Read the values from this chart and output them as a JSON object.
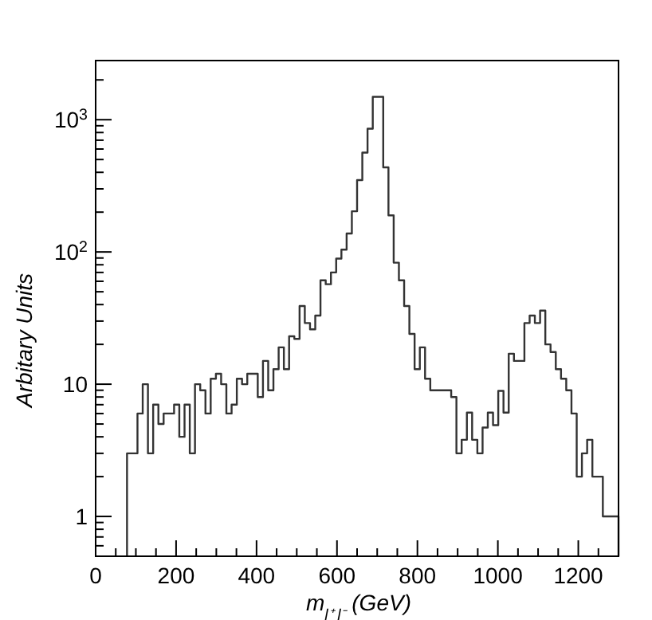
{
  "chart_data": {
    "type": "histogram",
    "xlabel": "m$_{l⁺ l⁻}$ (GeV)",
    "ylabel": "Arbitary Units",
    "log": "y",
    "grid": false,
    "color": "#333333",
    "bins": [
      78,
      91,
      104,
      117,
      130,
      143,
      156,
      169,
      182,
      195,
      208,
      221,
      234,
      247,
      260,
      273,
      286,
      299,
      312,
      325,
      338,
      351,
      364,
      377,
      390,
      403,
      416,
      429,
      442,
      455,
      468,
      481,
      494,
      507,
      520,
      533,
      546,
      559,
      572,
      585,
      598,
      611,
      624,
      637,
      650,
      663,
      676,
      689,
      702,
      715,
      728,
      741,
      754,
      767,
      780,
      793,
      806,
      819,
      832,
      845,
      858,
      871,
      884,
      897,
      910,
      923,
      936,
      949,
      962,
      975,
      988,
      1001,
      1014,
      1027,
      1040,
      1053,
      1066,
      1079,
      1092,
      1105,
      1118,
      1131,
      1144,
      1157,
      1170,
      1183,
      1196,
      1209,
      1222,
      1235,
      1248,
      1261,
      1274,
      1287,
      1300
    ],
    "values": [
      3,
      3,
      6,
      10,
      3,
      7,
      5,
      6,
      6,
      7,
      4,
      7,
      3,
      10,
      9,
      6,
      11,
      12,
      10,
      6,
      7,
      11,
      10,
      12,
      12,
      8,
      15,
      9,
      13,
      19,
      13,
      23,
      22,
      39,
      29,
      26,
      33,
      61,
      57,
      70,
      89,
      104,
      138,
      203,
      349,
      564,
      855,
      1490,
      1490,
      436,
      189,
      83,
      61,
      39,
      24,
      13,
      19,
      11,
      9,
      9,
      9,
      9,
      8,
      3,
      3.8,
      6.1,
      3.8,
      3,
      4.7,
      6.1,
      4.9,
      8.9,
      6.1,
      17,
      15,
      15,
      29,
      33,
      29,
      36,
      20,
      17.5,
      13,
      11,
      9,
      6,
      2,
      3,
      3.8,
      2,
      2,
      1,
      1,
      1
    ],
    "xlim": [
      0,
      1300
    ],
    "ylim": [
      0.5,
      2800
    ],
    "xticks": [
      0,
      {
        "value": 50,
        "label": null
      },
      {
        "value": 100,
        "label": null
      },
      {
        "value": 150,
        "label": null
      },
      200,
      {
        "value": 250,
        "label": null
      },
      {
        "value": 300,
        "label": null
      },
      {
        "value": 350,
        "label": null
      },
      400,
      {
        "value": 450,
        "label": null
      },
      {
        "value": 500,
        "label": null
      },
      {
        "value": 550,
        "label": null
      },
      600,
      {
        "value": 650,
        "label": null
      },
      {
        "value": 700,
        "label": null
      },
      {
        "value": 750,
        "label": null
      },
      800,
      {
        "value": 850,
        "label": null
      },
      {
        "value": 900,
        "label": null
      },
      {
        "value": 950,
        "label": null
      },
      1000,
      {
        "value": 1050,
        "label": null
      },
      {
        "value": 1100,
        "label": null
      },
      {
        "value": 1150,
        "label": null
      },
      1200,
      {
        "value": 1250,
        "label": null
      }
    ],
    "yticks": [
      {
        "value": 0.6,
        "label": null
      },
      {
        "value": 0.7,
        "label": null
      },
      {
        "value": 0.8,
        "label": null
      },
      {
        "value": 0.9,
        "label": null
      },
      1,
      {
        "value": 2,
        "label": null
      },
      {
        "value": 3,
        "label": null
      },
      {
        "value": 4,
        "label": null
      },
      {
        "value": 5,
        "label": null
      },
      {
        "value": 6,
        "label": null
      },
      {
        "value": 7,
        "label": null
      },
      {
        "value": 8,
        "label": null
      },
      {
        "value": 9,
        "label": null
      },
      10,
      {
        "value": 20,
        "label": null
      },
      {
        "value": 30,
        "label": null
      },
      {
        "value": 40,
        "label": null
      },
      {
        "value": 50,
        "label": null
      },
      {
        "value": 60,
        "label": null
      },
      {
        "value": 70,
        "label": null
      },
      {
        "value": 80,
        "label": null
      },
      {
        "value": 90,
        "label": null
      },
      {
        "value": 100,
        "label": "10$^{2}$"
      },
      {
        "value": 200,
        "label": null
      },
      {
        "value": 300,
        "label": null
      },
      {
        "value": 400,
        "label": null
      },
      {
        "value": 500,
        "label": null
      },
      {
        "value": 600,
        "label": null
      },
      {
        "value": 700,
        "label": null
      },
      {
        "value": 800,
        "label": null
      },
      {
        "value": 900,
        "label": null
      },
      {
        "value": 1000,
        "label": "10$^{3}$"
      },
      {
        "value": 2000,
        "label": null
      }
    ]
  }
}
